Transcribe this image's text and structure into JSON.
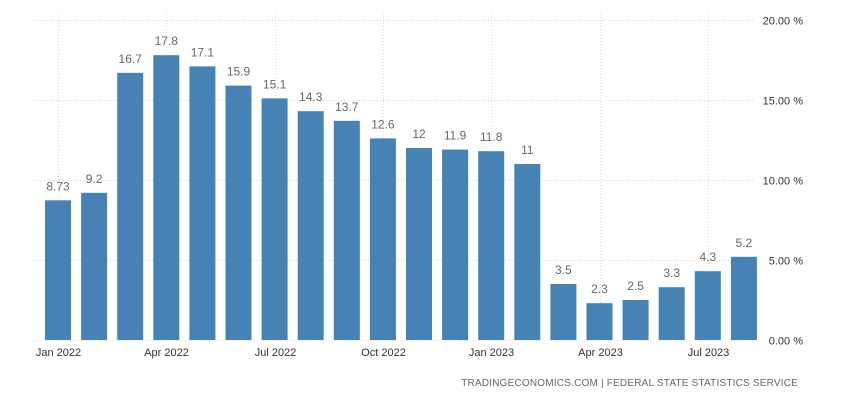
{
  "chart_data": {
    "type": "bar",
    "title": "",
    "xlabel": "",
    "ylabel": "",
    "categories": [
      "Jan 2022",
      "Feb 2022",
      "Mar 2022",
      "Apr 2022",
      "May 2022",
      "Jun 2022",
      "Jul 2022",
      "Aug 2022",
      "Sep 2022",
      "Oct 2022",
      "Nov 2022",
      "Dec 2022",
      "Jan 2023",
      "Feb 2023",
      "Mar 2023",
      "Apr 2023",
      "May 2023",
      "Jun 2023",
      "Jul 2023",
      "Aug 2023"
    ],
    "values": [
      8.73,
      9.2,
      16.7,
      17.8,
      17.1,
      15.9,
      15.1,
      14.3,
      13.7,
      12.6,
      12,
      11.9,
      11.8,
      11,
      3.5,
      2.3,
      2.5,
      3.3,
      4.3,
      5.2
    ],
    "value_labels": [
      "8.73",
      "9.2",
      "16.7",
      "17.8",
      "17.1",
      "15.9",
      "15.1",
      "14.3",
      "13.7",
      "12.6",
      "12",
      "11.9",
      "11.8",
      "11",
      "3.5",
      "2.3",
      "2.5",
      "3.3",
      "4.3",
      "5.2"
    ],
    "x_tick_labels": [
      "Jan 2022",
      "Apr 2022",
      "Jul 2022",
      "Oct 2022",
      "Jan 2023",
      "Apr 2023",
      "Jul 2023"
    ],
    "y_ticks": [
      0,
      5,
      10,
      15,
      20
    ],
    "y_tick_labels": [
      "0.00 %",
      "5.00 %",
      "10.00 %",
      "15.00 %",
      "20.00 %"
    ],
    "ylim": [
      0,
      20
    ],
    "y_axis_position": "right",
    "grid": true,
    "colors": {
      "bar": "#4682b4",
      "grid": "#d9d9d9",
      "label": "#666666"
    }
  },
  "source_text": "TRADINGECONOMICS.COM  |  FEDERAL STATE STATISTICS SERVICE"
}
